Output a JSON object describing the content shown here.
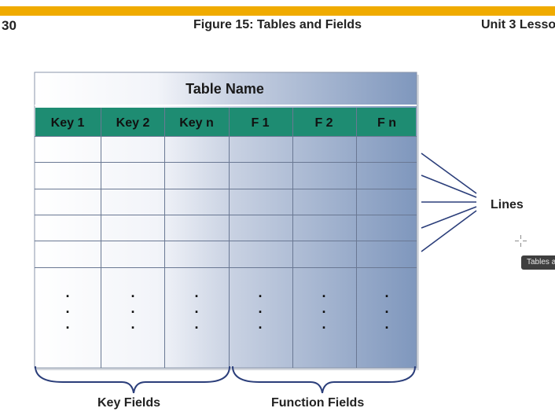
{
  "header": {
    "page_number": "30",
    "figure_title": "Figure 15: Tables and Fields",
    "unit_label": "Unit 3 Lesso"
  },
  "table": {
    "name": "Table Name",
    "columns": [
      "Key 1",
      "Key 2",
      "Key n",
      "F 1",
      "F 2",
      "F n"
    ],
    "ellipsis": "."
  },
  "labels": {
    "lines": "Lines",
    "key_fields": "Key Fields",
    "function_fields": "Function Fields"
  },
  "tooltip": {
    "text": "Tables an"
  },
  "colors": {
    "accent_bar": "#f0ab00",
    "header_row": "#1e8c72",
    "gradient_start": "#ffffff",
    "gradient_end": "#7f97bd",
    "connector": "#2b3e7a"
  }
}
